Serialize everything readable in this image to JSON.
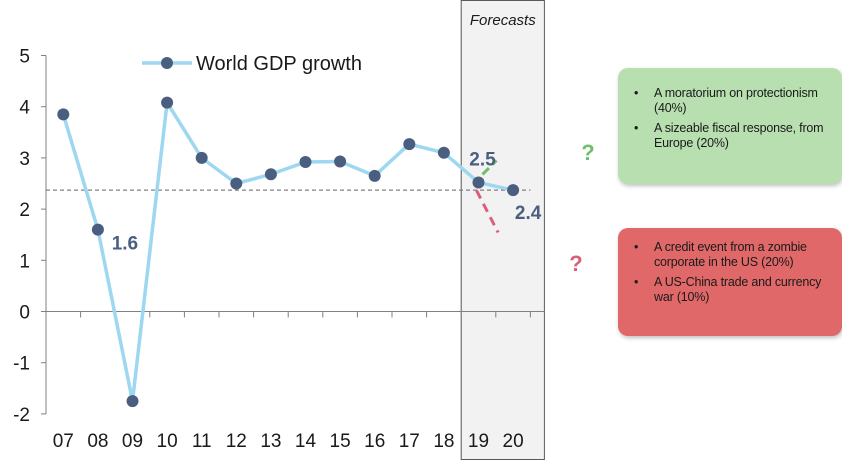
{
  "chart_data": {
    "type": "line",
    "categories": [
      "07",
      "08",
      "09",
      "10",
      "11",
      "12",
      "13",
      "14",
      "15",
      "16",
      "17",
      "18",
      "19",
      "20"
    ],
    "series": [
      {
        "name": "World GDP growth",
        "values": [
          3.85,
          1.6,
          -1.75,
          4.08,
          3.0,
          2.5,
          2.68,
          2.92,
          2.93,
          2.65,
          3.27,
          3.1,
          2.52,
          2.37
        ]
      }
    ],
    "ylim": [
      -2,
      5
    ],
    "yticks": [
      "5",
      "4",
      "3",
      "2",
      "1",
      "0",
      "-1",
      "-2"
    ],
    "ytick_values": [
      5,
      4,
      3,
      2,
      1,
      0,
      -1,
      -2
    ],
    "reference_line": 2.37,
    "forecast_label": "Forecasts",
    "forecast_start": "19",
    "data_labels": [
      {
        "category": "08",
        "text": "1.6"
      },
      {
        "category": "19",
        "text": "2.5"
      },
      {
        "category": "20",
        "text": "2.4"
      }
    ],
    "upside_mark": "?",
    "downside_mark": "?",
    "colors": {
      "line": "#9dd7f0",
      "marker": "#4a5f80",
      "reference": "#808080",
      "upside": "#6fbf6a",
      "downside": "#d9607a",
      "label": "#4a5f80"
    }
  },
  "upside_box": {
    "items": [
      "A moratorium on protectionism (40%)",
      "A sizeable fiscal response, from Europe (20%)"
    ],
    "color": "#b8dfb0"
  },
  "downside_box": {
    "items": [
      "A credit event from a zombie corporate in the US (20%)",
      "A US-China trade and currency war (10%)"
    ],
    "color": "#e06868"
  },
  "bullet": "•"
}
